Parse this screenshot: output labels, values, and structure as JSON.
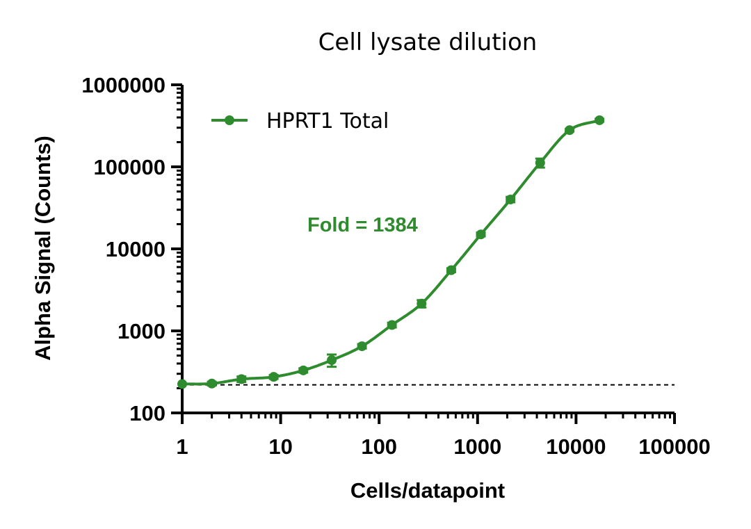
{
  "chart_data": {
    "type": "scatter",
    "title": "Cell lysate dilution",
    "xlabel": "Cells/datapoint",
    "ylabel": "Alpha Signal (Counts)",
    "x_scale": "log",
    "y_scale": "log",
    "xlim": [
      1,
      100000
    ],
    "ylim": [
      100,
      1000000
    ],
    "x_tick_labels": [
      "1",
      "10",
      "100",
      "1000",
      "10000",
      "100000"
    ],
    "y_tick_labels": [
      "100",
      "1000",
      "10000",
      "100000",
      "1000000"
    ],
    "grid": false,
    "legend_position": "top-left",
    "series": [
      {
        "name": "HPRT1 Total",
        "color": "#2e8b2e",
        "marker": "circle",
        "fit": "sigmoidal curve",
        "x": [
          1,
          2,
          4,
          8.5,
          17,
          33,
          67,
          135,
          270,
          540,
          1080,
          2160,
          4320,
          8600,
          17300
        ],
        "y": [
          225,
          228,
          258,
          275,
          330,
          440,
          650,
          1180,
          2150,
          5500,
          15000,
          40000,
          112000,
          280000,
          370000
        ],
        "error": [
          6,
          12,
          20,
          15,
          20,
          75,
          40,
          80,
          220,
          300,
          800,
          3000,
          14000,
          10000,
          15000
        ]
      }
    ],
    "baseline": {
      "y": 220,
      "style": "dashed",
      "color": "#000000"
    },
    "annotations": [
      {
        "text": "Fold = 1384",
        "color": "#2e8b2e"
      }
    ]
  }
}
